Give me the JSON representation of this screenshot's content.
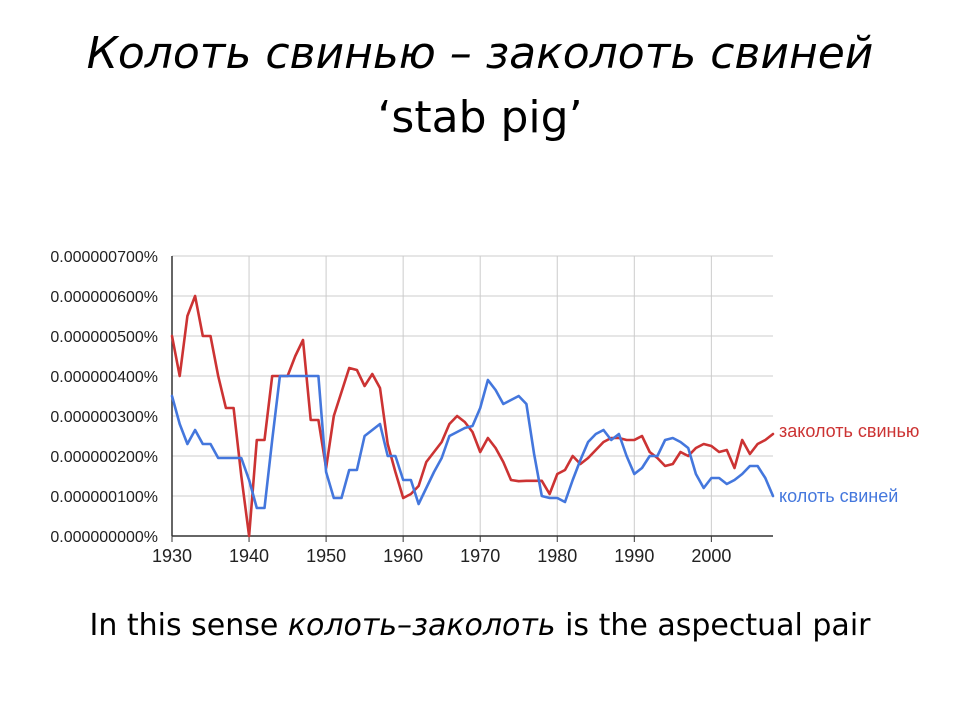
{
  "slide": {
    "title_line1": "Колоть свинью – заколоть свиней",
    "title_line2": "‘stab pig’",
    "caption_prefix": "In this sense ",
    "caption_term": "колоть–заколоть",
    "caption_suffix": " is the aspectual pair"
  },
  "colors": {
    "zakolot": "#cc3333",
    "kolot": "#4477dd",
    "grid": "#cccccc",
    "axis": "#333333",
    "text": "#222222"
  },
  "chart_data": {
    "type": "line",
    "title": "",
    "xlabel": "",
    "ylabel": "",
    "xlim": [
      1930,
      2008
    ],
    "ylim": [
      0,
      7e-07
    ],
    "grid": true,
    "x_ticks": [
      1930,
      1940,
      1950,
      1960,
      1970,
      1980,
      1990,
      2000
    ],
    "x_tick_labels": [
      "1930",
      "1940",
      "1950",
      "1960",
      "1970",
      "1980",
      "1990",
      "2000"
    ],
    "y_ticks": [
      0,
      1e-07,
      2e-07,
      3e-07,
      4e-07,
      5e-07,
      6e-07,
      7e-07
    ],
    "y_tick_labels": [
      "0.000000000%",
      "0.000000100%",
      "0.000000200%",
      "0.000000300%",
      "0.000000400%",
      "0.000000500%",
      "0.000000600%",
      "0.000000700%"
    ],
    "legend": "inline-right",
    "series": [
      {
        "name": "заколоть свинью",
        "color": "#cc3333",
        "x": [
          1930,
          1931,
          1932,
          1933,
          1934,
          1935,
          1936,
          1937,
          1938,
          1939,
          1940,
          1941,
          1942,
          1943,
          1944,
          1945,
          1946,
          1947,
          1948,
          1949,
          1950,
          1951,
          1952,
          1953,
          1954,
          1955,
          1956,
          1957,
          1958,
          1959,
          1960,
          1961,
          1962,
          1963,
          1964,
          1965,
          1966,
          1967,
          1968,
          1969,
          1970,
          1971,
          1972,
          1973,
          1974,
          1975,
          1976,
          1977,
          1978,
          1979,
          1980,
          1981,
          1982,
          1983,
          1984,
          1985,
          1986,
          1987,
          1988,
          1989,
          1990,
          1991,
          1992,
          1993,
          1994,
          1995,
          1996,
          1997,
          1998,
          1999,
          2000,
          2001,
          2002,
          2003,
          2004,
          2005,
          2006,
          2007,
          2008
        ],
        "y": [
          5e-07,
          4e-07,
          5.5e-07,
          6e-07,
          5e-07,
          5e-07,
          4e-07,
          3.2e-07,
          3.2e-07,
          1.5e-07,
          0.0,
          2.4e-07,
          2.4e-07,
          4e-07,
          4e-07,
          4e-07,
          4.5e-07,
          4.9e-07,
          2.9e-07,
          2.9e-07,
          1.7e-07,
          3e-07,
          3.6e-07,
          4.2e-07,
          4.15e-07,
          3.75e-07,
          4.05e-07,
          3.7e-07,
          2.3e-07,
          1.6e-07,
          9.5e-08,
          1.05e-07,
          1.25e-07,
          1.85e-07,
          2.1e-07,
          2.35e-07,
          2.8e-07,
          3e-07,
          2.85e-07,
          2.6e-07,
          2.1e-07,
          2.45e-07,
          2.2e-07,
          1.85e-07,
          1.4e-07,
          1.37e-07,
          1.38e-07,
          1.38e-07,
          1.38e-07,
          1.05e-07,
          1.55e-07,
          1.65e-07,
          2e-07,
          1.8e-07,
          1.95e-07,
          2.15e-07,
          2.35e-07,
          2.45e-07,
          2.45e-07,
          2.4e-07,
          2.4e-07,
          2.5e-07,
          2.1e-07,
          1.95e-07,
          1.75e-07,
          1.8e-07,
          2.1e-07,
          2e-07,
          2.2e-07,
          2.3e-07,
          2.25e-07,
          2.1e-07,
          2.15e-07,
          1.7e-07,
          2.4e-07,
          2.05e-07,
          2.3e-07,
          2.4e-07,
          2.55e-07
        ]
      },
      {
        "name": "колоть свиней",
        "color": "#4477dd",
        "x": [
          1930,
          1931,
          1932,
          1933,
          1934,
          1935,
          1936,
          1937,
          1938,
          1939,
          1940,
          1941,
          1942,
          1943,
          1944,
          1945,
          1946,
          1947,
          1948,
          1949,
          1950,
          1951,
          1952,
          1953,
          1954,
          1955,
          1956,
          1957,
          1958,
          1959,
          1960,
          1961,
          1962,
          1963,
          1964,
          1965,
          1966,
          1967,
          1968,
          1969,
          1970,
          1971,
          1972,
          1973,
          1974,
          1975,
          1976,
          1977,
          1978,
          1979,
          1980,
          1981,
          1982,
          1983,
          1984,
          1985,
          1986,
          1987,
          1988,
          1989,
          1990,
          1991,
          1992,
          1993,
          1994,
          1995,
          1996,
          1997,
          1998,
          1999,
          2000,
          2001,
          2002,
          2003,
          2004,
          2005,
          2006,
          2007,
          2008
        ],
        "y": [
          3.5e-07,
          2.8e-07,
          2.3e-07,
          2.65e-07,
          2.3e-07,
          2.3e-07,
          1.95e-07,
          1.95e-07,
          1.95e-07,
          1.95e-07,
          1.4e-07,
          7e-08,
          7e-08,
          2.4e-07,
          4e-07,
          4e-07,
          4e-07,
          4e-07,
          4e-07,
          4e-07,
          1.6e-07,
          9.5e-08,
          9.5e-08,
          1.65e-07,
          1.65e-07,
          2.5e-07,
          2.65e-07,
          2.8e-07,
          2e-07,
          2e-07,
          1.4e-07,
          1.4e-07,
          8e-08,
          1.2e-07,
          1.6e-07,
          1.95e-07,
          2.5e-07,
          2.6e-07,
          2.7e-07,
          2.75e-07,
          3.2e-07,
          3.9e-07,
          3.65e-07,
          3.3e-07,
          3.4e-07,
          3.5e-07,
          3.3e-07,
          2.05e-07,
          1e-07,
          9.5e-08,
          9.5e-08,
          8.5e-08,
          1.4e-07,
          1.9e-07,
          2.35e-07,
          2.55e-07,
          2.65e-07,
          2.4e-07,
          2.55e-07,
          2e-07,
          1.55e-07,
          1.7e-07,
          2e-07,
          2e-07,
          2.4e-07,
          2.45e-07,
          2.35e-07,
          2.2e-07,
          1.55e-07,
          1.2e-07,
          1.45e-07,
          1.45e-07,
          1.3e-07,
          1.4e-07,
          1.55e-07,
          1.75e-07,
          1.75e-07,
          1.45e-07,
          1e-07
        ]
      }
    ]
  }
}
